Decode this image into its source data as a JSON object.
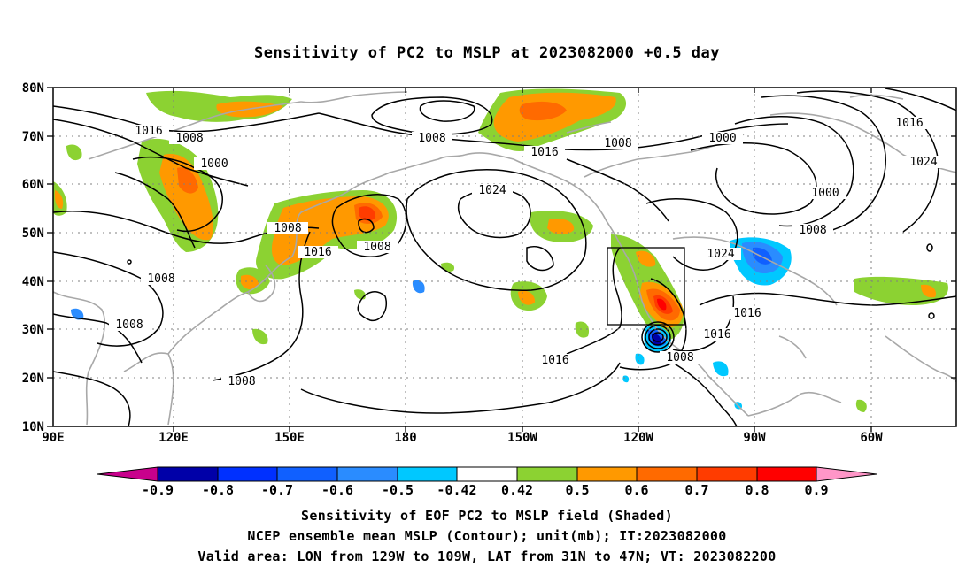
{
  "title": "Sensitivity of PC2 to MSLP at 2023082000 +0.5 day",
  "axes": {
    "y_ticks": [
      "80N",
      "70N",
      "60N",
      "50N",
      "40N",
      "30N",
      "20N",
      "10N"
    ],
    "x_ticks": [
      "90E",
      "120E",
      "150E",
      "180",
      "150W",
      "120W",
      "90W",
      "60W"
    ]
  },
  "contour_labels": {
    "c1016a": "1016",
    "c1008a": "1008",
    "c1000a": "1000",
    "c1008b": "1008",
    "c1016b": "1016",
    "c1024a": "1024",
    "c1008c": "1008",
    "c1000b": "1000",
    "c1016c": "1016",
    "c1024b": "1024",
    "c1000c": "1000",
    "c1008d": "1008",
    "c1008e": "1008",
    "c1016d": "1016",
    "c1008f": "1008",
    "c1008g": "1008",
    "c1008h": "1008",
    "c1024c": "1024",
    "c1016e": "1016",
    "c1016f": "1016",
    "c1008i": "1008",
    "c1016g": "1016",
    "c1008j": "1008"
  },
  "colorbar": {
    "labels": [
      "-0.9",
      "-0.8",
      "-0.7",
      "-0.6",
      "-0.5",
      "-0.42",
      "0.42",
      "0.5",
      "0.6",
      "0.7",
      "0.8",
      "0.9"
    ],
    "colors": [
      "#0000a8",
      "#0030ff",
      "#1060ff",
      "#2a8cff",
      "#00c8ff",
      "#ffffff",
      "#8cd232",
      "#ff9900",
      "#ff6a00",
      "#ff3c00",
      "#ff0000"
    ],
    "low_color": "#c8008c",
    "high_color": "#ff96c8"
  },
  "captions": {
    "line1": "Sensitivity of EOF PC2 to MSLP field (Shaded)",
    "line2": "NCEP ensemble mean MSLP (Contour); unit(mb); IT:2023082000",
    "line3": "Valid area: LON from 129W to 109W, LAT from 31N to 47N; VT: 2023082200"
  }
}
